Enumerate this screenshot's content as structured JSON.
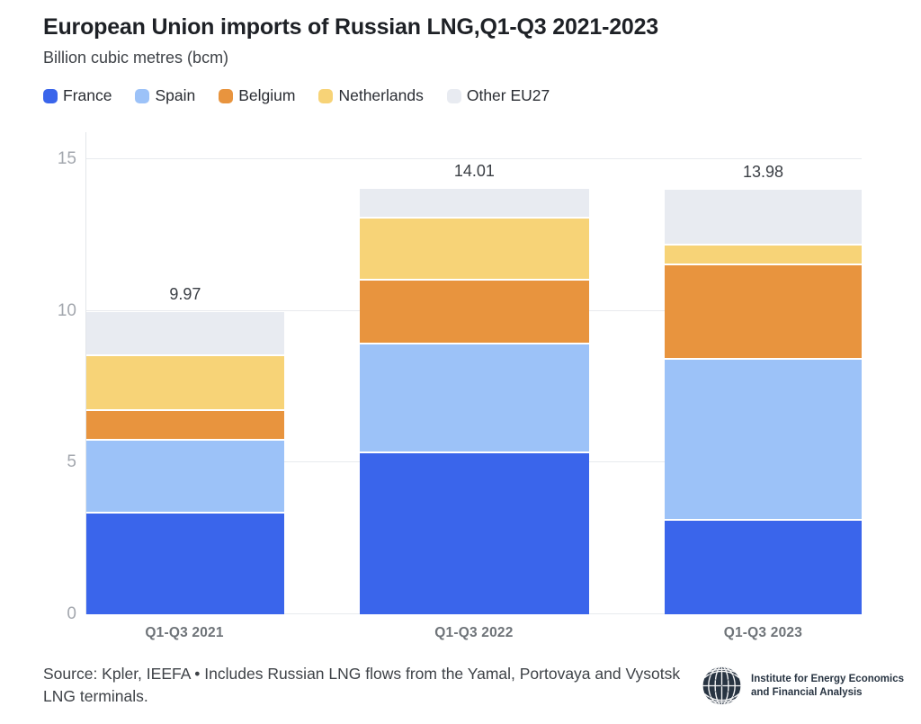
{
  "header": {
    "title": "European Union imports of Russian LNG,Q1-Q3 2021-2023",
    "subtitle": "Billion cubic metres (bcm)"
  },
  "legend": [
    {
      "label": "France",
      "color": "#3A65EB"
    },
    {
      "label": "Spain",
      "color": "#9CC2F8"
    },
    {
      "label": "Belgium",
      "color": "#E8943E"
    },
    {
      "label": "Netherlands",
      "color": "#F7D377"
    },
    {
      "label": "Other EU27",
      "color": "#E8EBF1"
    }
  ],
  "chart_data": {
    "type": "bar",
    "stacked": true,
    "title": "European Union imports of Russian LNG,Q1-Q3 2021-2023",
    "ylabel": "Billion cubic metres (bcm)",
    "categories": [
      "Q1-Q3 2021",
      "Q1-Q3 2022",
      "Q1-Q3 2023"
    ],
    "series": [
      {
        "name": "France",
        "color": "#3A65EB",
        "values": [
          3.37,
          5.36,
          3.15
        ]
      },
      {
        "name": "Spain",
        "color": "#9CC2F8",
        "values": [
          2.4,
          3.6,
          5.3
        ]
      },
      {
        "name": "Belgium",
        "color": "#E8943E",
        "values": [
          1.0,
          2.1,
          3.1
        ]
      },
      {
        "name": "Netherlands",
        "color": "#F7D377",
        "values": [
          1.8,
          2.05,
          0.65
        ]
      },
      {
        "name": "Other EU27",
        "color": "#E8EBF1",
        "values": [
          1.4,
          0.9,
          1.78
        ]
      }
    ],
    "totals": [
      9.97,
      14.01,
      13.98
    ],
    "total_labels": [
      "9.97",
      "14.01",
      "13.98"
    ],
    "yticks": [
      0,
      5,
      10,
      15
    ],
    "ylim": [
      0,
      15
    ],
    "grid": true,
    "legend_position": "top"
  },
  "footer": {
    "source_text": "Source: Kpler, IEEFA • Includes Russian LNG flows from the Yamal, Portovaya and Vysotsk LNG terminals.",
    "logo": {
      "icon": "globe-icon",
      "line1": "Institute for Energy Economics",
      "line2": "and Financial Analysis"
    }
  }
}
